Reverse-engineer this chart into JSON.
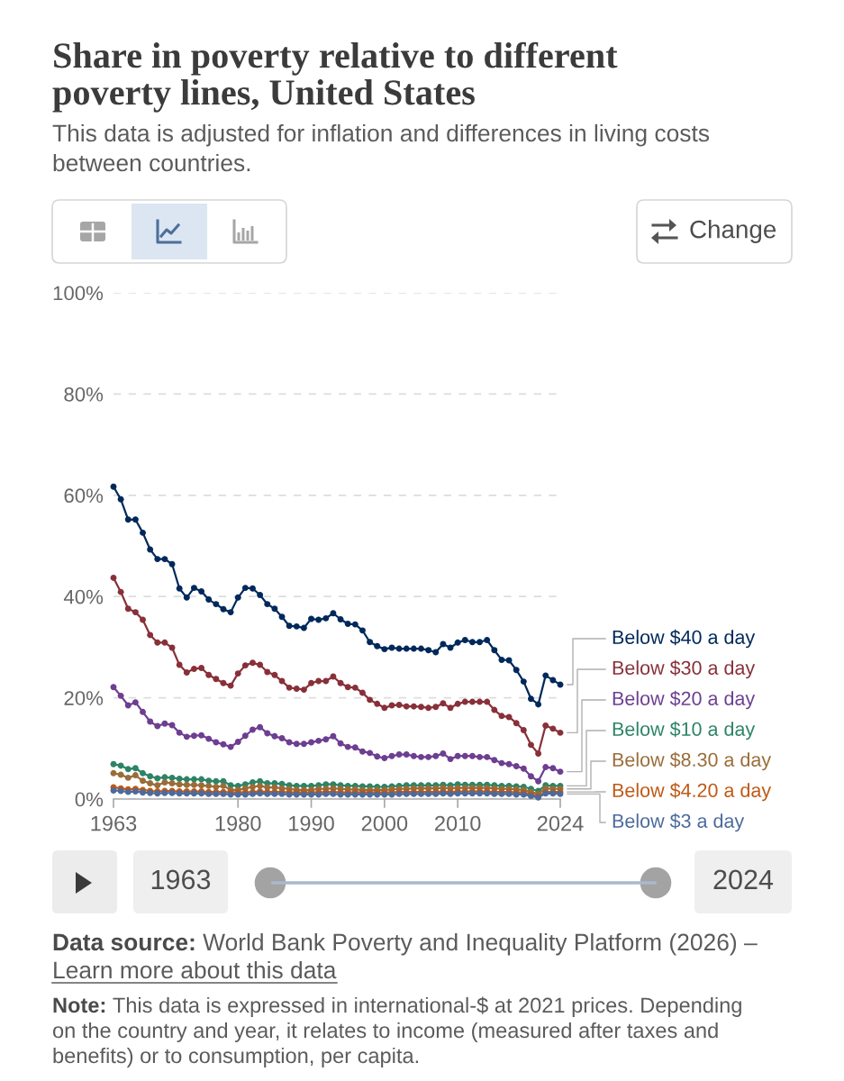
{
  "chart_data": {
    "type": "line",
    "title": "Share in poverty relative to different poverty lines, United States",
    "subtitle": "This data is adjusted for inflation and differences in living costs between countries.",
    "x": [
      1963,
      1964,
      1965,
      1966,
      1967,
      1968,
      1969,
      1970,
      1971,
      1972,
      1973,
      1974,
      1975,
      1976,
      1977,
      1978,
      1979,
      1980,
      1981,
      1982,
      1983,
      1984,
      1985,
      1986,
      1987,
      1988,
      1989,
      1990,
      1991,
      1992,
      1993,
      1994,
      1995,
      1996,
      1997,
      1998,
      1999,
      2000,
      2001,
      2002,
      2003,
      2004,
      2005,
      2006,
      2007,
      2008,
      2009,
      2010,
      2011,
      2012,
      2013,
      2014,
      2015,
      2016,
      2017,
      2018,
      2019,
      2020,
      2021,
      2022,
      2023,
      2024
    ],
    "xlim": [
      1963,
      2024
    ],
    "xticks": [
      1963,
      1980,
      1990,
      2000,
      2010,
      2024
    ],
    "ylim": [
      0,
      100
    ],
    "yticks": [
      {
        "value": 0,
        "label": "0%"
      },
      {
        "value": 20,
        "label": "20%"
      },
      {
        "value": 40,
        "label": "40%"
      },
      {
        "value": 60,
        "label": "60%"
      },
      {
        "value": 80,
        "label": "80%"
      },
      {
        "value": 100,
        "label": "100%"
      }
    ],
    "grid": "y",
    "marker": "circle",
    "line_style": "solid",
    "series": [
      {
        "name": "Below $40 a day",
        "color": "#00295b",
        "values": [
          61.7,
          59.2,
          55.2,
          55.2,
          52.6,
          49.3,
          47.4,
          47.4,
          46.4,
          41.6,
          39.8,
          41.7,
          41.0,
          39.4,
          38.5,
          37.5,
          36.9,
          39.8,
          41.7,
          41.6,
          40.3,
          38.5,
          37.6,
          36.0,
          34.2,
          34.1,
          33.8,
          35.6,
          35.4,
          35.7,
          36.7,
          35.5,
          34.6,
          34.5,
          33.3,
          31.0,
          30.2,
          29.6,
          29.9,
          29.7,
          29.7,
          29.7,
          29.7,
          29.4,
          29.0,
          30.6,
          29.9,
          30.9,
          31.4,
          31.0,
          31.0,
          31.4,
          29.4,
          27.5,
          27.4,
          25.5,
          23.2,
          19.8,
          18.7,
          24.4,
          23.5,
          22.6
        ]
      },
      {
        "name": "Below $30 a day",
        "color": "#883039",
        "values": [
          43.7,
          40.9,
          37.6,
          36.9,
          35.4,
          32.4,
          30.9,
          30.9,
          29.9,
          26.5,
          25.0,
          25.7,
          25.9,
          24.5,
          23.7,
          22.9,
          22.4,
          24.8,
          26.4,
          26.9,
          26.5,
          25.1,
          24.5,
          23.3,
          22.0,
          21.8,
          21.6,
          22.9,
          23.3,
          23.3,
          24.2,
          22.9,
          22.1,
          22.0,
          21.0,
          19.6,
          18.8,
          18.0,
          18.5,
          18.6,
          18.3,
          18.3,
          18.2,
          18.0,
          18.2,
          18.9,
          18.0,
          18.8,
          19.2,
          19.2,
          19.2,
          19.2,
          17.6,
          16.4,
          16.2,
          15.0,
          13.6,
          10.7,
          9.0,
          14.5,
          13.9,
          13.1
        ]
      },
      {
        "name": "Below $20 a day",
        "color": "#6d3e91",
        "values": [
          22.1,
          20.4,
          18.5,
          19.1,
          17.2,
          15.3,
          14.4,
          14.9,
          14.6,
          13.1,
          12.3,
          12.5,
          12.6,
          11.9,
          11.2,
          10.8,
          10.3,
          11.3,
          12.5,
          13.7,
          14.2,
          13.0,
          12.4,
          12.0,
          11.2,
          10.9,
          10.9,
          11.2,
          11.5,
          11.8,
          12.4,
          11.0,
          10.3,
          10.2,
          9.4,
          9.1,
          8.4,
          8.1,
          8.5,
          8.8,
          8.8,
          8.5,
          8.3,
          8.3,
          8.5,
          9.0,
          7.9,
          8.5,
          8.5,
          8.5,
          8.3,
          8.3,
          7.7,
          7.1,
          6.9,
          6.5,
          6.0,
          4.5,
          3.5,
          6.3,
          6.1,
          5.4
        ]
      },
      {
        "name": "Below $10 a day",
        "color": "#2c8465",
        "values": [
          6.9,
          6.6,
          5.9,
          6.1,
          5.1,
          4.5,
          4.1,
          4.3,
          4.2,
          4.0,
          3.9,
          3.9,
          3.9,
          3.6,
          3.5,
          3.5,
          2.7,
          2.6,
          2.9,
          3.3,
          3.5,
          3.1,
          3.1,
          3.0,
          2.7,
          2.6,
          2.6,
          2.6,
          2.7,
          2.9,
          2.9,
          2.7,
          2.6,
          2.6,
          2.5,
          2.5,
          2.4,
          2.4,
          2.5,
          2.6,
          2.7,
          2.7,
          2.7,
          2.7,
          2.7,
          2.8,
          2.7,
          2.9,
          2.8,
          2.8,
          2.8,
          2.8,
          2.7,
          2.6,
          2.6,
          2.5,
          2.4,
          2.0,
          1.6,
          2.7,
          2.6,
          2.6
        ]
      },
      {
        "name": "Below $8.30 a day",
        "color": "#996d39",
        "values": [
          5.1,
          4.8,
          4.2,
          4.7,
          3.6,
          3.1,
          2.7,
          3.3,
          3.1,
          2.9,
          2.8,
          2.8,
          2.7,
          2.6,
          2.4,
          2.6,
          1.8,
          1.8,
          2.1,
          2.4,
          2.6,
          2.3,
          2.3,
          2.1,
          2.0,
          1.8,
          1.8,
          1.8,
          2.0,
          2.0,
          2.1,
          2.0,
          1.9,
          1.9,
          1.8,
          1.8,
          1.8,
          1.8,
          1.9,
          2.0,
          2.0,
          2.1,
          2.1,
          2.1,
          2.1,
          2.2,
          2.1,
          2.2,
          2.2,
          2.2,
          2.2,
          2.2,
          2.1,
          2.0,
          2.0,
          1.9,
          1.8,
          1.4,
          1.0,
          2.1,
          2.0,
          2.0
        ]
      },
      {
        "name": "Below $4.20 a day",
        "color": "#be5915",
        "values": [
          2.3,
          2.1,
          1.9,
          2.0,
          1.8,
          1.6,
          1.5,
          1.6,
          1.6,
          1.5,
          1.5,
          1.5,
          1.5,
          1.4,
          1.4,
          1.4,
          1.3,
          1.3,
          1.3,
          1.4,
          1.5,
          1.4,
          1.4,
          1.4,
          1.3,
          1.3,
          1.3,
          1.3,
          1.3,
          1.4,
          1.4,
          1.3,
          1.3,
          1.3,
          1.3,
          1.3,
          1.3,
          1.3,
          1.3,
          1.4,
          1.4,
          1.4,
          1.4,
          1.4,
          1.4,
          1.5,
          1.4,
          1.5,
          1.5,
          1.5,
          1.5,
          1.5,
          1.4,
          1.4,
          1.4,
          1.3,
          1.3,
          0.9,
          0.6,
          1.4,
          1.4,
          1.4
        ]
      },
      {
        "name": "Below $3 a day",
        "color": "#4c6a9c",
        "values": [
          1.7,
          1.6,
          1.4,
          1.5,
          1.3,
          1.2,
          1.1,
          1.2,
          1.2,
          1.1,
          1.1,
          1.1,
          1.1,
          1.0,
          1.0,
          1.0,
          0.9,
          0.9,
          0.9,
          1.0,
          1.1,
          1.0,
          1.0,
          1.0,
          0.9,
          0.9,
          0.9,
          0.9,
          0.9,
          1.0,
          1.0,
          0.9,
          0.9,
          0.9,
          0.9,
          0.9,
          0.9,
          0.9,
          0.9,
          1.0,
          1.0,
          1.0,
          1.0,
          1.0,
          1.0,
          1.1,
          1.0,
          1.1,
          1.1,
          1.1,
          1.1,
          1.1,
          1.0,
          1.0,
          1.0,
          0.9,
          0.9,
          0.6,
          0.3,
          1.1,
          1.1,
          1.0
        ]
      }
    ],
    "annotations": [
      "Change",
      "1963",
      "2024",
      "Data source: World Bank Poverty and Inequality Platform (2026) –",
      "Learn more about this data",
      "Note: This data is expressed in international-$ at 2021 prices. Depending on the country and year, it relates to income (measured after taxes and benefits) or to consumption, per capita."
    ]
  }
}
